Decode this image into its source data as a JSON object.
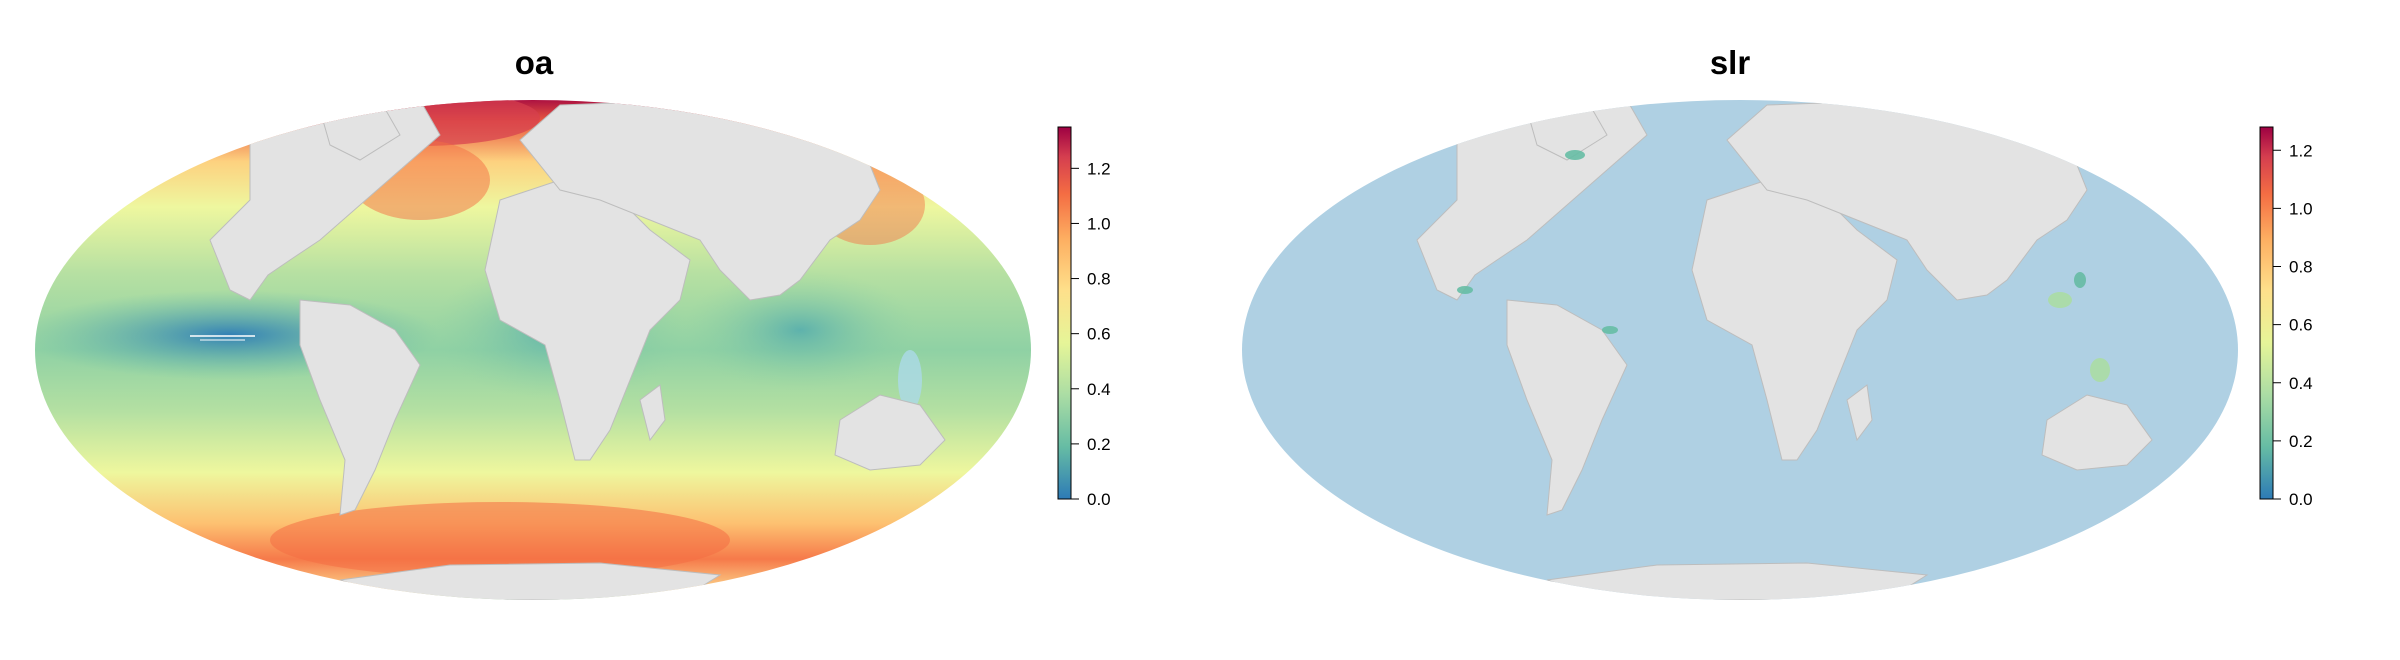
{
  "maps": [
    {
      "id": "oa",
      "title": "oa",
      "legend": {
        "min": 0.0,
        "max": 1.35,
        "ticks": [
          "0.0",
          "0.2",
          "0.4",
          "0.6",
          "0.8",
          "1.0",
          "1.2"
        ]
      }
    },
    {
      "id": "slr",
      "title": "slr",
      "legend": {
        "min": 0.0,
        "max": 1.28,
        "ticks": [
          "0.0",
          "0.2",
          "0.4",
          "0.6",
          "0.8",
          "1.0",
          "1.2"
        ]
      }
    }
  ],
  "colors": {
    "land": "#e3e3e3",
    "border": "#bdbdbd",
    "slr_ocean": "#afd0e3",
    "palette": [
      "#2d7bb6",
      "#66bca4",
      "#abdda4",
      "#e6f598",
      "#fee08b",
      "#fdae61",
      "#f46d43",
      "#d53e4f",
      "#9e0142"
    ]
  }
}
